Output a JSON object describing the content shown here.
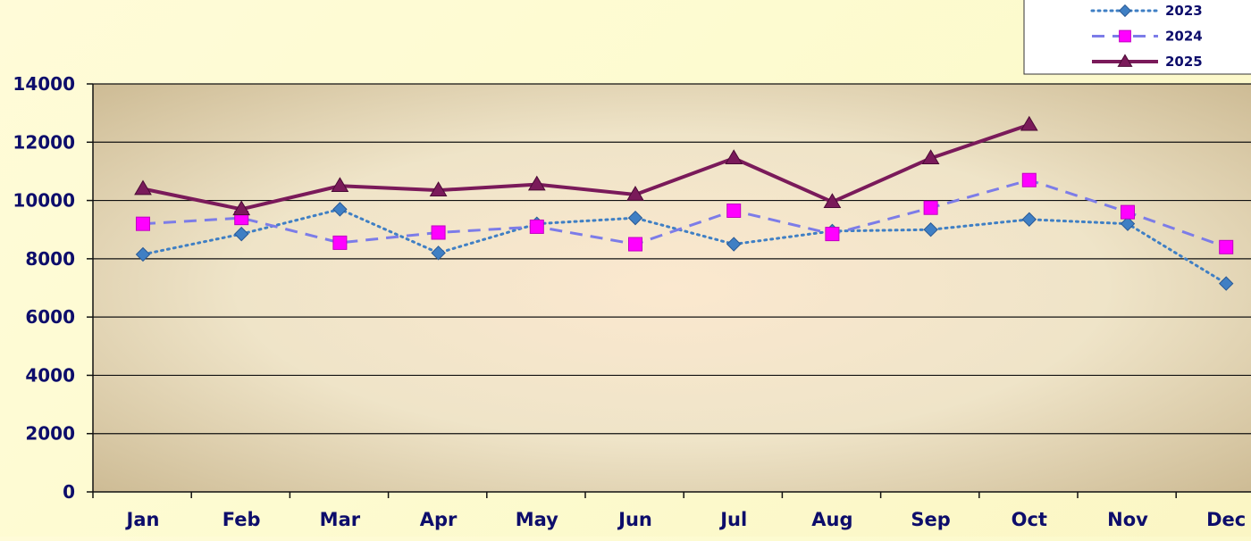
{
  "chart_data": {
    "type": "line",
    "title": "",
    "xlabel": "",
    "ylabel": "",
    "categories": [
      "Jan",
      "Feb",
      "Mar",
      "Apr",
      "May",
      "Jun",
      "Jul",
      "Aug",
      "Sep",
      "Oct",
      "Nov",
      "Dec"
    ],
    "ylim": [
      0,
      14000
    ],
    "yticks": [
      0,
      2000,
      4000,
      6000,
      8000,
      10000,
      12000,
      14000
    ],
    "grid": true,
    "legend_position": "top-right",
    "series": [
      {
        "name": "2023",
        "color": "#3f7fc4",
        "line_style": "dotted",
        "marker": "diamond",
        "values": [
          8150,
          8850,
          9700,
          8200,
          9200,
          9400,
          8500,
          8950,
          9000,
          9350,
          9200,
          7150
        ]
      },
      {
        "name": "2024",
        "color": "#7c7ce8",
        "marker_color": "#ff00ff",
        "line_style": "dashed",
        "marker": "square",
        "values": [
          9200,
          9400,
          8550,
          8900,
          9100,
          8500,
          9650,
          8850,
          9750,
          10700,
          9600,
          8400
        ]
      },
      {
        "name": "2025",
        "color": "#7a1a5a",
        "line_style": "solid",
        "marker": "triangle",
        "values": [
          10400,
          9700,
          10500,
          10350,
          10550,
          10200,
          11450,
          9950,
          11450,
          12600,
          null,
          null
        ]
      }
    ]
  }
}
